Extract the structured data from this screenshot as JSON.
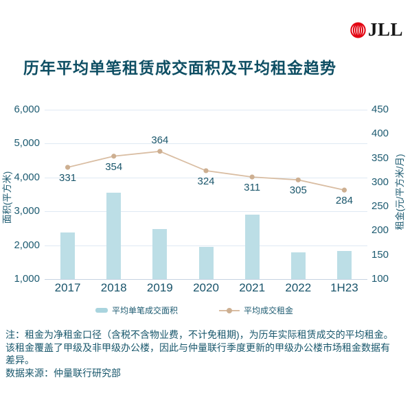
{
  "logo": {
    "brand": "JLL",
    "icon": "jll-globe-icon",
    "brand_color": "#E30613"
  },
  "title": "历年平均单笔租赁成交面积及平均租金趋势",
  "chart_data": {
    "type": "bar+line combo",
    "categories": [
      "2017",
      "2018",
      "2019",
      "2020",
      "2021",
      "2022",
      "1H23"
    ],
    "series": [
      {
        "name": "平均单笔成交面积",
        "type": "bar",
        "axis": "left",
        "values": [
          2380,
          3550,
          2480,
          1950,
          2900,
          1780,
          1820
        ],
        "color": "#BCDEE6"
      },
      {
        "name": "平均成交租金",
        "type": "line",
        "axis": "right",
        "values": [
          331,
          354,
          364,
          324,
          311,
          305,
          284
        ],
        "data_labels": [
          "331",
          "354",
          "364",
          "324",
          "311",
          "305",
          "284"
        ],
        "label_position": [
          "below",
          "below",
          "above",
          "below",
          "below",
          "below",
          "below"
        ],
        "color": "#D9BDA2",
        "dot_color": "#CDAF91"
      }
    ],
    "left_axis": {
      "title": "面积(平方米)",
      "min": 1000,
      "max": 6000,
      "ticks": [
        "6,000",
        "5,000",
        "4,000",
        "3,000",
        "2,000",
        "1,000"
      ]
    },
    "right_axis": {
      "title": "租金(元/平方米/月)",
      "min": 100,
      "max": 450,
      "ticks": [
        "450",
        "400",
        "350",
        "300",
        "250",
        "200",
        "150",
        "100"
      ]
    },
    "grid": true,
    "legend_position": "bottom"
  },
  "footnote": {
    "lines": [
      "注：租金为净租金口径（含税不含物业费，不计免租期)，为历年实际租赁成交的平均租金。",
      "该租金覆盖了甲级及非甲级办公楼，因此与仲量联行季度更新的甲级办公楼市场租金数据有",
      "差异。",
      "数据来源：仲量联行研究部"
    ]
  },
  "colors": {
    "title_text": "#0E4E63",
    "axis_text": "#1C5A70",
    "bar_fill": "#BCDEE6",
    "line_stroke": "#D9BDA2",
    "dot_fill": "#CDAF91",
    "gridline": "#DFE9F3",
    "axis_line": "#C5D3E1",
    "logo_red": "#E30613"
  }
}
